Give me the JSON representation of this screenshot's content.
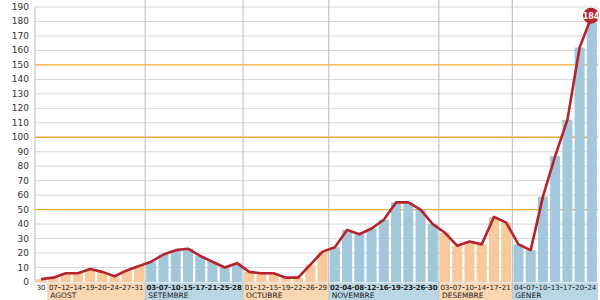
{
  "chart_data": {
    "type": "bar",
    "categories": [
      "30",
      "07",
      "12",
      "14",
      "19",
      "20",
      "24",
      "27",
      "31",
      "03",
      "07",
      "10",
      "15",
      "17",
      "21",
      "25",
      "28",
      "01",
      "12",
      "15",
      "19",
      "22",
      "26",
      "29",
      "02",
      "04",
      "08",
      "12",
      "16",
      "19",
      "23",
      "26",
      "30",
      "03",
      "07",
      "10",
      "14",
      "17",
      "21",
      "04",
      "07",
      "10",
      "13",
      "17",
      "20",
      "24"
    ],
    "months": [
      null,
      "AGOST",
      "AGOST",
      "AGOST",
      "AGOST",
      "AGOST",
      "AGOST",
      "AGOST",
      "AGOST",
      "SETEMBRE",
      "SETEMBRE",
      "SETEMBRE",
      "SETEMBRE",
      "SETEMBRE",
      "SETEMBRE",
      "SETEMBRE",
      "SETEMBRE",
      "OCTUBRE",
      "OCTUBRE",
      "OCTUBRE",
      "OCTUBRE",
      "OCTUBRE",
      "OCTUBRE",
      "OCTUBRE",
      "NOVEMBRE",
      "NOVEMBRE",
      "NOVEMBRE",
      "NOVEMBRE",
      "NOVEMBRE",
      "NOVEMBRE",
      "NOVEMBRE",
      "NOVEMBRE",
      "NOVEMBRE",
      "DESEMBRE",
      "DESEMBRE",
      "DESEMBRE",
      "DESEMBRE",
      "DESEMBRE",
      "DESEMBRE",
      "GENER",
      "GENER",
      "GENER",
      "GENER",
      "GENER",
      "GENER",
      "GENER"
    ],
    "series": [
      {
        "type": "bar",
        "colors": [
          "#f8c99a",
          "#f8c99a",
          "#f8c99a",
          "#f8c99a",
          "#f8c99a",
          "#f8c99a",
          "#f8c99a",
          "#f8c99a",
          "#f8c99a",
          "#a3c8dc",
          "#a3c8dc",
          "#a3c8dc",
          "#a3c8dc",
          "#a3c8dc",
          "#a3c8dc",
          "#a3c8dc",
          "#a3c8dc",
          "#f8c99a",
          "#f8c99a",
          "#f8c99a",
          "#f8c99a",
          "#f8c99a",
          "#f8c99a",
          "#f8c99a",
          "#a3c8dc",
          "#a3c8dc",
          "#a3c8dc",
          "#a3c8dc",
          "#a3c8dc",
          "#a3c8dc",
          "#a3c8dc",
          "#a3c8dc",
          "#a3c8dc",
          "#f8c99a",
          "#f8c99a",
          "#f8c99a",
          "#f8c99a",
          "#f8c99a",
          "#f8c99a",
          "#a3c8dc",
          "#a3c8dc",
          "#a3c8dc",
          "#a3c8dc",
          "#a3c8dc",
          "#a3c8dc",
          "#a3c8dc"
        ],
        "values": [
          2,
          3,
          6,
          6,
          9,
          7,
          4,
          8,
          11,
          14,
          19,
          22,
          23,
          18,
          14,
          10,
          13,
          7,
          6,
          6,
          3,
          3,
          12,
          21,
          24,
          36,
          33,
          37,
          43,
          55,
          55,
          50,
          40,
          34,
          25,
          28,
          26,
          45,
          41,
          26,
          22,
          59,
          87,
          112,
          162,
          184
        ]
      },
      {
        "type": "line",
        "color": "#b5242d",
        "marker": "none",
        "values": [
          2,
          3,
          6,
          6,
          9,
          7,
          4,
          8,
          11,
          14,
          19,
          22,
          23,
          18,
          14,
          10,
          13,
          7,
          6,
          6,
          3,
          3,
          12,
          21,
          24,
          36,
          33,
          37,
          43,
          55,
          55,
          50,
          40,
          34,
          25,
          28,
          26,
          45,
          41,
          26,
          22,
          59,
          87,
          112,
          162,
          184
        ],
        "value_labels": [
          null,
          null,
          null,
          null,
          null,
          null,
          null,
          null,
          null,
          null,
          null,
          null,
          null,
          null,
          null,
          null,
          null,
          null,
          null,
          null,
          null,
          null,
          null,
          null,
          null,
          null,
          null,
          null,
          null,
          null,
          null,
          null,
          null,
          null,
          null,
          null,
          null,
          null,
          null,
          null,
          null,
          null,
          null,
          null,
          null,
          "184"
        ]
      }
    ],
    "ylim": [
      0,
      190
    ],
    "yticks": [
      0,
      10,
      20,
      30,
      40,
      50,
      60,
      70,
      80,
      90,
      100,
      110,
      120,
      130,
      140,
      150,
      160,
      170,
      180,
      190
    ],
    "grid": true
  }
}
